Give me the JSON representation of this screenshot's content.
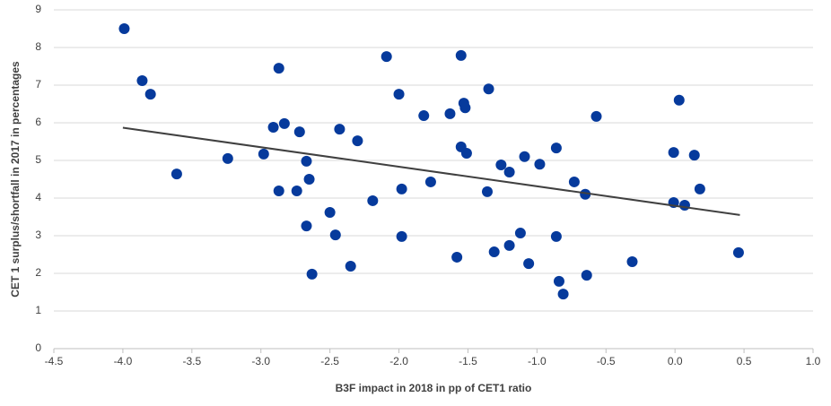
{
  "chart_data": {
    "type": "scatter",
    "x_label": "B3F impact in 2018 in pp of CET1 ratio",
    "y_label": "CET 1 surplus/shortfall in 2017 in percentages",
    "xlim": [
      -4.5,
      1.0
    ],
    "xticks": [
      -4.5,
      -4.0,
      -3.5,
      -3.0,
      -2.5,
      -2.0,
      -1.5,
      -1.0,
      -0.5,
      0.0,
      0.5,
      1.0
    ],
    "ylim": [
      0,
      9
    ],
    "yticks": [
      0,
      1,
      2,
      3,
      4,
      5,
      6,
      7,
      8,
      9
    ],
    "grid": true,
    "series": [
      {
        "color": "#063a9c",
        "x": [
          -3.99,
          -3.86,
          -3.8,
          -3.61,
          -3.24,
          -2.98,
          -2.87,
          -2.91,
          -2.83,
          -2.87,
          -2.72,
          -2.74,
          -2.67,
          -2.65,
          -2.67,
          -2.63,
          -2.5,
          -2.46,
          -2.43,
          -2.35,
          -2.3,
          -2.19,
          -2.09,
          -2.0,
          -1.98,
          -1.98,
          -1.77,
          -1.82,
          -1.63,
          -1.55,
          -1.58,
          -1.55,
          -1.53,
          -1.52,
          -1.51,
          -1.35,
          -1.36,
          -1.31,
          -1.26,
          -1.2,
          -1.2,
          -1.12,
          -1.09,
          -1.06,
          -0.98,
          -0.86,
          -0.86,
          -0.84,
          -0.81,
          -0.73,
          -0.65,
          -0.64,
          -0.57,
          -0.31,
          -0.01,
          -0.01,
          0.03,
          0.07,
          0.14,
          0.18,
          0.46
        ],
        "values": [
          8.5,
          7.12,
          6.76,
          4.64,
          5.05,
          5.17,
          7.45,
          5.88,
          5.98,
          4.19,
          5.76,
          4.19,
          4.98,
          4.5,
          3.26,
          1.98,
          3.62,
          3.02,
          5.83,
          2.19,
          5.52,
          3.93,
          7.76,
          6.76,
          4.24,
          2.98,
          4.43,
          6.19,
          6.24,
          7.79,
          2.43,
          5.36,
          6.52,
          6.4,
          5.19,
          6.9,
          4.17,
          2.57,
          4.88,
          4.69,
          2.74,
          3.07,
          5.1,
          2.26,
          4.9,
          5.33,
          2.98,
          1.79,
          1.45,
          4.43,
          4.1,
          1.95,
          6.17,
          2.31,
          5.21,
          3.88,
          6.6,
          3.81,
          5.14,
          4.24,
          2.55
        ]
      }
    ],
    "trendline": {
      "color": "#404040",
      "x": [
        -4.0,
        0.47
      ],
      "values": [
        5.87,
        3.55
      ]
    }
  }
}
